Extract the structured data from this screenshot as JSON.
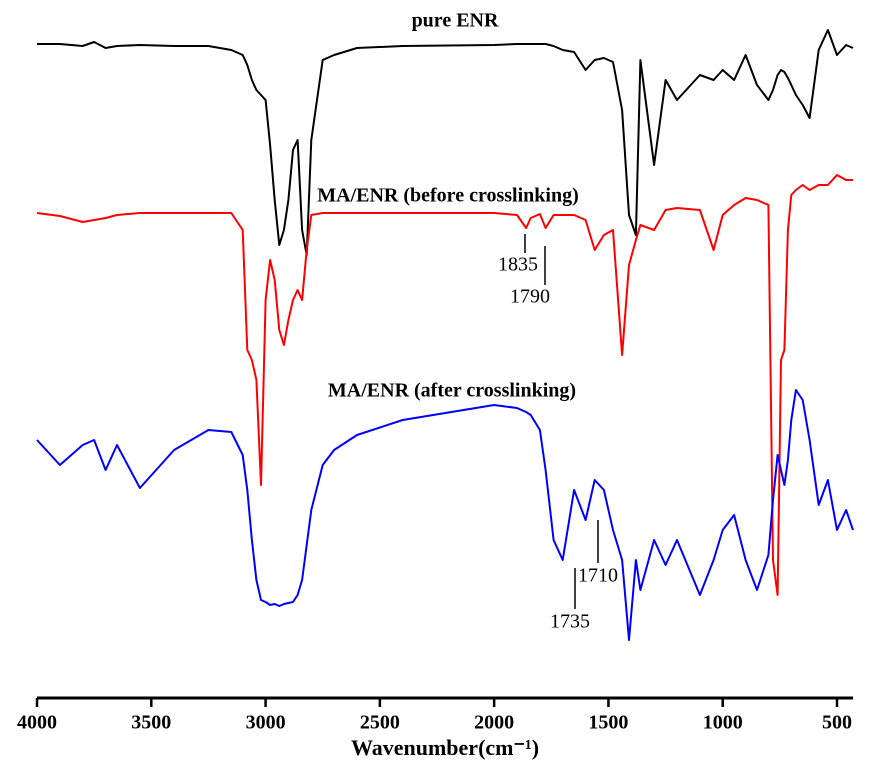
{
  "chart_data": {
    "type": "line",
    "xlabel": "Wavenumber(cm⁻¹)",
    "xlim": [
      4000,
      430
    ],
    "ylim": [
      0,
      680
    ],
    "xticks": [
      4000,
      3500,
      3000,
      2500,
      2000,
      1500,
      1000,
      500
    ],
    "x": [
      4000,
      3900,
      3800,
      3750,
      3700,
      3650,
      3550,
      3400,
      3250,
      3150,
      3100,
      3080,
      3060,
      3040,
      3020,
      3000,
      2980,
      2960,
      2940,
      2920,
      2900,
      2880,
      2860,
      2840,
      2820,
      2800,
      2750,
      2700,
      2600,
      2400,
      2000,
      1900,
      1860,
      1840,
      1800,
      1775,
      1740,
      1700,
      1650,
      1600,
      1560,
      1520,
      1480,
      1440,
      1410,
      1380,
      1360,
      1300,
      1250,
      1200,
      1100,
      1040,
      1000,
      950,
      900,
      850,
      800,
      780,
      760,
      745,
      730,
      715,
      700,
      680,
      650,
      620,
      580,
      540,
      500,
      460,
      430
    ],
    "series": [
      {
        "name": "pure ENR",
        "color": "#000000",
        "values": [
          654,
          654,
          652,
          656,
          650,
          652,
          653,
          652,
          652,
          648,
          643,
          633,
          618,
          608,
          603,
          598,
          553,
          498,
          453,
          468,
          498,
          548,
          558,
          468,
          443,
          558,
          638,
          643,
          650,
          652,
          653,
          654,
          654,
          654,
          654,
          654,
          652,
          648,
          646,
          628,
          638,
          640,
          636,
          588,
          483,
          463,
          638,
          533,
          618,
          598,
          623,
          618,
          628,
          618,
          643,
          613,
          598,
          608,
          623,
          628,
          626,
          620,
          613,
          603,
          593,
          580,
          648,
          668,
          643,
          653,
          650
        ]
      },
      {
        "name": "MA/ENR (before crosslinking)",
        "color": "#ff0000",
        "values": [
          485,
          482,
          476,
          478,
          480,
          483,
          485,
          485,
          485,
          485,
          468,
          348,
          338,
          318,
          213,
          398,
          438,
          418,
          368,
          353,
          378,
          398,
          408,
          398,
          448,
          483,
          485,
          485,
          485,
          485,
          485,
          483,
          470,
          480,
          484,
          470,
          483,
          483,
          483,
          478,
          448,
          463,
          468,
          343,
          433,
          458,
          473,
          468,
          488,
          490,
          488,
          448,
          483,
          493,
          500,
          498,
          493,
          138,
          103,
          338,
          348,
          468,
          503,
          508,
          513,
          508,
          513,
          513,
          523,
          518,
          518
        ]
      },
      {
        "name": "MA/ENR (after crosslinking)",
        "color": "#0000ff",
        "values": [
          258,
          233,
          253,
          258,
          228,
          253,
          210,
          248,
          268,
          266,
          243,
          208,
          158,
          118,
          98,
          96,
          93,
          94,
          92,
          94,
          95,
          96,
          103,
          118,
          153,
          188,
          233,
          248,
          263,
          278,
          293,
          290,
          286,
          283,
          268,
          228,
          158,
          138,
          208,
          178,
          218,
          208,
          168,
          138,
          58,
          138,
          108,
          158,
          133,
          158,
          103,
          138,
          168,
          183,
          138,
          108,
          143,
          198,
          243,
          228,
          213,
          238,
          278,
          308,
          298,
          258,
          193,
          218,
          168,
          188,
          168
        ]
      }
    ],
    "annotations": [
      "1835",
      "1790",
      "1710",
      "1735"
    ]
  }
}
